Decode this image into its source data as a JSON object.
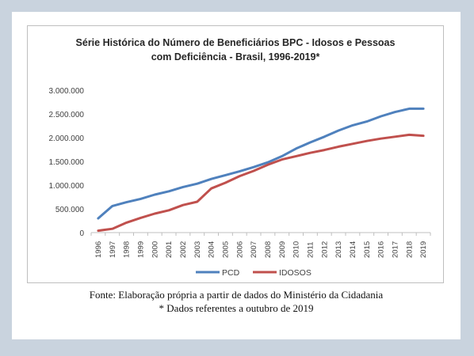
{
  "chart_data": {
    "type": "line",
    "title_line1": "Série Histórica do Número de Beneficiários BPC - Idosos e Pessoas",
    "title_line2": "com Deficiência - Brasil, 1996-2019*",
    "xlabel": "",
    "ylabel": "",
    "ylim": [
      0,
      3000000
    ],
    "yticks": [
      "3.000.000",
      "2.500.000",
      "2.000.000",
      "1.500.000",
      "1.000.000",
      "500.000",
      "0"
    ],
    "ytick_values": [
      3000000,
      2500000,
      2000000,
      1500000,
      1000000,
      500000,
      0
    ],
    "categories": [
      "1996",
      "1997",
      "1998",
      "1999",
      "2000",
      "2001",
      "2002",
      "2003",
      "2004",
      "2005",
      "2006",
      "2007",
      "2008",
      "2009",
      "2010",
      "2011",
      "2012",
      "2013",
      "2014",
      "2015",
      "2016",
      "2017",
      "2018",
      "2019"
    ],
    "series": [
      {
        "name": "PCD",
        "color": "#4f81bd",
        "values": [
          300000,
          560000,
          640000,
          710000,
          800000,
          870000,
          960000,
          1030000,
          1130000,
          1210000,
          1290000,
          1380000,
          1480000,
          1610000,
          1770000,
          1900000,
          2020000,
          2150000,
          2260000,
          2340000,
          2450000,
          2540000,
          2610000,
          2610000
        ]
      },
      {
        "name": "IDOSOS",
        "color": "#c0504d",
        "values": [
          40000,
          80000,
          210000,
          310000,
          400000,
          470000,
          580000,
          650000,
          930000,
          1050000,
          1190000,
          1300000,
          1430000,
          1540000,
          1610000,
          1680000,
          1740000,
          1810000,
          1870000,
          1930000,
          1980000,
          2020000,
          2060000,
          2040000
        ]
      }
    ],
    "grid": false,
    "legend": "bottom"
  },
  "caption": {
    "line1": "Fonte: Elaboração própria a partir de dados do Ministério da Cidadania",
    "line2": "* Dados referentes a outubro de 2019"
  }
}
